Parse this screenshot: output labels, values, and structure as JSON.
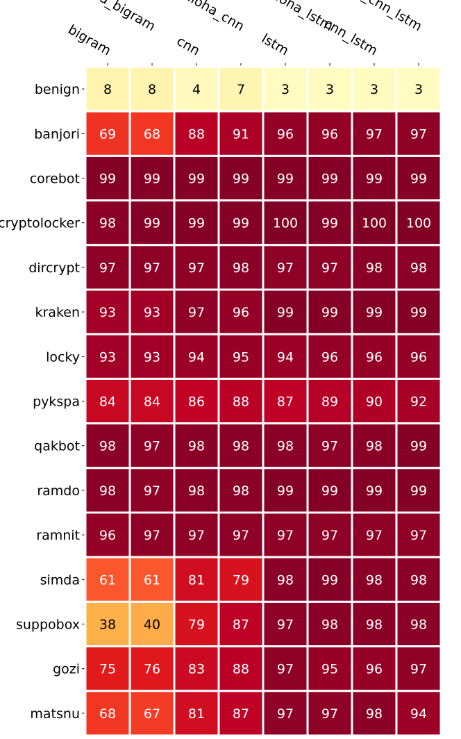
{
  "chart_data": {
    "type": "heatmap",
    "title": "",
    "xlabel": "",
    "ylabel": "",
    "columns": [
      "bigram",
      "aloha_bigram",
      "cnn",
      "aloha_cnn",
      "lstm",
      "aloha_lstm",
      "cnn_lstm",
      "aloha_cnn_lstm"
    ],
    "rows": [
      "benign",
      "banjori",
      "corebot",
      "cryptolocker",
      "dircrypt",
      "kraken",
      "locky",
      "pykspa",
      "qakbot",
      "ramdo",
      "ramnit",
      "simda",
      "suppobox",
      "gozi",
      "matsnu"
    ],
    "values": [
      [
        8,
        8,
        4,
        7,
        3,
        3,
        3,
        3
      ],
      [
        69,
        68,
        88,
        91,
        96,
        96,
        97,
        97
      ],
      [
        99,
        99,
        99,
        99,
        99,
        99,
        99,
        99
      ],
      [
        98,
        99,
        99,
        99,
        100,
        99,
        100,
        100
      ],
      [
        97,
        97,
        97,
        98,
        97,
        97,
        98,
        98
      ],
      [
        93,
        93,
        97,
        96,
        99,
        99,
        99,
        99
      ],
      [
        93,
        93,
        94,
        95,
        94,
        96,
        96,
        96
      ],
      [
        84,
        84,
        86,
        88,
        87,
        89,
        90,
        92
      ],
      [
        98,
        97,
        98,
        98,
        98,
        97,
        98,
        99
      ],
      [
        98,
        97,
        98,
        98,
        99,
        99,
        99,
        99
      ],
      [
        96,
        97,
        97,
        97,
        97,
        97,
        97,
        97
      ],
      [
        61,
        61,
        81,
        79,
        98,
        99,
        98,
        98
      ],
      [
        38,
        40,
        79,
        87,
        97,
        98,
        98,
        98
      ],
      [
        75,
        76,
        83,
        88,
        97,
        95,
        96,
        97
      ],
      [
        68,
        67,
        81,
        87,
        97,
        97,
        98,
        94
      ]
    ],
    "colormap": "YlOrRd",
    "value_range": [
      0,
      100
    ],
    "annotated": true,
    "colorbar": false,
    "x_tick_position": "top"
  }
}
